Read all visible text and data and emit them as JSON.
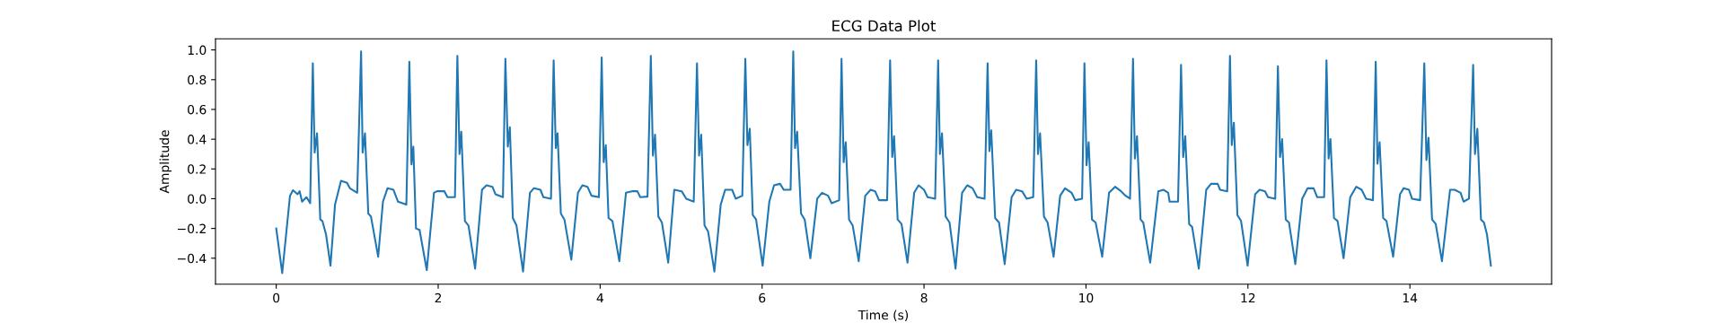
{
  "chart_data": {
    "type": "line",
    "title": "ECG Data Plot",
    "xlabel": "Time (s)",
    "ylabel": "Amplitude",
    "xlim": [
      -0.75,
      15.75
    ],
    "ylim": [
      -0.575,
      1.075
    ],
    "xticks": [
      0,
      2,
      4,
      6,
      8,
      10,
      12,
      14
    ],
    "yticks": [
      {
        "value": -0.4,
        "label": "−0.4"
      },
      {
        "value": -0.2,
        "label": "−0.2"
      },
      {
        "value": 0,
        "label": "0.0"
      },
      0.2,
      0.4,
      0.6,
      0.8,
      {
        "value": 1,
        "label": "1.0"
      }
    ],
    "grid": false,
    "series": [
      {
        "color": "#1f77b4",
        "line_style": "solid",
        "x": [
          0,
          0.074,
          0.17,
          0.207,
          0.263,
          0.289,
          0.319,
          0.374,
          0.419,
          0.452,
          0.474,
          0.504,
          0.544,
          0.57,
          0.615,
          0.67,
          0.726,
          0.8,
          0.874,
          0.91,
          1.0,
          1.048,
          1.067,
          1.096,
          1.137,
          1.17,
          1.259,
          1.318,
          1.374,
          1.448,
          1.504,
          1.607,
          1.644,
          1.67,
          1.693,
          1.726,
          1.77,
          1.859,
          1.948,
          1.985,
          2.077,
          2.115,
          2.207,
          2.237,
          2.263,
          2.285,
          2.33,
          2.374,
          2.456,
          2.541,
          2.596,
          2.67,
          2.707,
          2.8,
          2.83,
          2.86,
          2.885,
          2.922,
          2.967,
          3.048,
          3.133,
          3.181,
          3.263,
          3.3,
          3.393,
          3.426,
          3.452,
          3.474,
          3.515,
          3.559,
          3.644,
          3.726,
          3.781,
          3.844,
          3.893,
          3.985,
          4.019,
          4.044,
          4.07,
          4.104,
          4.152,
          4.237,
          4.319,
          4.393,
          4.46,
          4.496,
          4.585,
          4.626,
          4.652,
          4.678,
          4.719,
          4.763,
          4.841,
          4.915,
          5.007,
          5.063,
          5.156,
          5.196,
          5.222,
          5.248,
          5.289,
          5.333,
          5.411,
          5.489,
          5.544,
          5.63,
          5.674,
          5.756,
          5.793,
          5.819,
          5.848,
          5.885,
          5.926,
          6.007,
          6.089,
          6.148,
          6.222,
          6.267,
          6.352,
          6.385,
          6.407,
          6.433,
          6.481,
          6.526,
          6.596,
          6.681,
          6.74,
          6.815,
          6.859,
          6.952,
          6.981,
          7.007,
          7.033,
          7.074,
          7.119,
          7.193,
          7.274,
          7.341,
          7.396,
          7.444,
          7.544,
          7.581,
          7.607,
          7.63,
          7.674,
          7.722,
          7.796,
          7.878,
          7.933,
          8.0,
          8.044,
          8.137,
          8.174,
          8.196,
          8.222,
          8.267,
          8.315,
          8.389,
          8.47,
          8.533,
          8.6,
          8.656,
          8.748,
          8.785,
          8.807,
          8.83,
          8.878,
          8.926,
          8.996,
          9.081,
          9.137,
          9.211,
          9.267,
          9.348,
          9.385,
          9.407,
          9.433,
          9.481,
          9.526,
          9.6,
          9.681,
          9.741,
          9.822,
          9.867,
          9.952,
          9.981,
          10.007,
          10.033,
          10.074,
          10.119,
          10.2,
          10.285,
          10.359,
          10.433,
          10.489,
          10.544,
          10.581,
          10.604,
          10.63,
          10.674,
          10.707,
          10.793,
          10.893,
          10.959,
          11.015,
          11.033,
          11.137,
          11.174,
          11.2,
          11.226,
          11.274,
          11.311,
          11.393,
          11.485,
          11.544,
          11.626,
          11.656,
          11.744,
          11.778,
          11.8,
          11.826,
          11.87,
          11.915,
          11.996,
          12.089,
          12.144,
          12.211,
          12.248,
          12.337,
          12.37,
          12.396,
          12.422,
          12.467,
          12.507,
          12.585,
          12.67,
          12.737,
          12.811,
          12.856,
          12.941,
          12.97,
          12.996,
          13.019,
          13.063,
          13.107,
          13.181,
          13.263,
          13.337,
          13.404,
          13.459,
          13.544,
          13.578,
          13.6,
          13.626,
          13.67,
          13.711,
          13.793,
          13.878,
          13.922,
          13.989,
          14.026,
          14.126,
          14.178,
          14.204,
          14.23,
          14.274,
          14.319,
          14.396,
          14.496,
          14.552,
          14.626,
          14.663,
          14.73,
          14.781,
          14.804,
          14.833,
          14.878,
          14.915,
          14.952,
          15.0
        ],
        "values": [
          -0.2,
          -0.5,
          0.02,
          0.057,
          0.03,
          0.05,
          -0.02,
          0.01,
          -0.03,
          0.91,
          0.31,
          0.44,
          -0.14,
          -0.15,
          -0.24,
          -0.45,
          -0.04,
          0.12,
          0.107,
          0.07,
          0.04,
          0.99,
          0.31,
          0.44,
          -0.1,
          -0.12,
          -0.39,
          -0.02,
          0.07,
          0.06,
          -0.02,
          -0.04,
          0.92,
          0.23,
          0.35,
          -0.2,
          -0.21,
          -0.48,
          0.04,
          0.05,
          0.05,
          0.01,
          0.01,
          0.96,
          0.3,
          0.45,
          -0.15,
          -0.18,
          -0.47,
          0.06,
          0.09,
          0.08,
          0.03,
          0.01,
          0.94,
          0.35,
          0.48,
          -0.13,
          -0.18,
          -0.49,
          0.04,
          0.07,
          0.06,
          0.01,
          0.0,
          0.93,
          0.34,
          0.44,
          -0.1,
          -0.14,
          -0.41,
          0.04,
          0.09,
          0.08,
          0.02,
          0.01,
          0.95,
          0.245,
          0.36,
          -0.13,
          -0.15,
          -0.42,
          0.04,
          0.05,
          0.05,
          0.01,
          0.014,
          0.96,
          0.29,
          0.43,
          -0.12,
          -0.16,
          -0.43,
          0.06,
          0.05,
          0.0,
          -0.02,
          0.91,
          0.29,
          0.43,
          -0.18,
          -0.22,
          -0.49,
          -0.04,
          0.06,
          0.06,
          0.0,
          0.02,
          0.94,
          0.36,
          0.47,
          -0.11,
          -0.14,
          -0.45,
          -0.02,
          0.09,
          0.1,
          0.06,
          0.06,
          0.99,
          0.34,
          0.45,
          -0.1,
          -0.14,
          -0.4,
          0.0,
          0.04,
          0.02,
          -0.03,
          -0.01,
          0.94,
          0.245,
          0.38,
          -0.14,
          -0.18,
          -0.42,
          0.02,
          0.06,
          0.05,
          -0.01,
          -0.01,
          0.93,
          0.28,
          0.42,
          -0.14,
          -0.17,
          -0.43,
          0.04,
          0.09,
          0.06,
          0.01,
          0.0,
          0.93,
          0.3,
          0.44,
          -0.12,
          -0.16,
          -0.47,
          0.04,
          0.09,
          0.07,
          0.01,
          0.0,
          0.91,
          0.32,
          0.46,
          -0.13,
          -0.16,
          -0.44,
          0.01,
          0.06,
          0.05,
          0.0,
          0.01,
          0.93,
          0.3,
          0.44,
          -0.12,
          -0.16,
          -0.39,
          0.02,
          0.07,
          0.04,
          -0.01,
          0.0,
          0.91,
          0.225,
          0.38,
          -0.14,
          -0.16,
          -0.39,
          0.04,
          0.08,
          0.05,
          0.02,
          0.0,
          0.94,
          0.27,
          0.42,
          -0.14,
          -0.16,
          -0.43,
          0.05,
          0.06,
          0.04,
          -0.02,
          -0.02,
          0.9,
          0.28,
          0.42,
          -0.17,
          -0.19,
          -0.47,
          0.06,
          0.1,
          0.1,
          0.06,
          0.05,
          0.96,
          0.36,
          0.51,
          -0.11,
          -0.15,
          -0.45,
          0.03,
          0.06,
          0.05,
          0.01,
          0.0,
          0.89,
          0.28,
          0.4,
          -0.14,
          -0.16,
          -0.44,
          0.0,
          0.07,
          0.07,
          0.01,
          0.01,
          0.93,
          0.27,
          0.4,
          -0.13,
          -0.15,
          -0.4,
          0.01,
          0.08,
          0.06,
          0.0,
          -0.01,
          0.92,
          0.235,
          0.38,
          -0.13,
          -0.15,
          -0.39,
          0.03,
          0.07,
          0.06,
          0.0,
          -0.01,
          0.91,
          0.26,
          0.41,
          -0.14,
          -0.17,
          -0.42,
          0.06,
          0.06,
          0.04,
          -0.02,
          0.0,
          0.9,
          0.3,
          0.47,
          -0.14,
          -0.16,
          -0.24,
          -0.45
        ]
      }
    ]
  }
}
